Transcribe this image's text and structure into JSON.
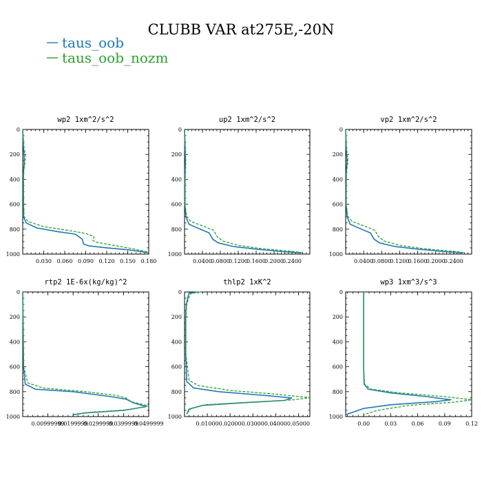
{
  "figure": {
    "title": "CLUBB VAR at275E,-20N",
    "legend": [
      {
        "name": "taus_oob",
        "color": "#1f77b4",
        "dash": "solid"
      },
      {
        "name": "taus_oob_nozm",
        "color": "#2ca02c",
        "dash": "dashed"
      }
    ]
  },
  "chart_data": [
    {
      "type": "line",
      "title": "wp2  1xm^2/s^2",
      "xlim": [
        0,
        0.18
      ],
      "ylim": [
        1000,
        0
      ],
      "xticks": [
        "0.030",
        "0.060",
        "0.090",
        "0.120",
        "0.150",
        "0.180"
      ],
      "xtick_values": [
        0.03,
        0.06,
        0.09,
        0.12,
        0.15,
        0.18
      ],
      "yticks": [
        "0",
        "200",
        "400",
        "600",
        "800",
        "1000"
      ],
      "ytick_values": [
        0,
        200,
        400,
        600,
        800,
        1000
      ],
      "series": [
        {
          "name": "taus_oob",
          "points": [
            [
              0,
              0
            ],
            [
              0.001,
              150
            ],
            [
              0.002,
              210
            ],
            [
              0.002,
              280
            ],
            [
              0.001,
              350
            ],
            [
              0.001,
              500
            ],
            [
              0.001,
              700
            ],
            [
              0.005,
              750
            ],
            [
              0.02,
              790
            ],
            [
              0.05,
              820
            ],
            [
              0.075,
              840
            ],
            [
              0.085,
              880
            ],
            [
              0.087,
              920
            ],
            [
              0.095,
              935
            ],
            [
              0.12,
              950
            ],
            [
              0.15,
              965
            ],
            [
              0.17,
              980
            ],
            [
              0.18,
              990
            ]
          ]
        },
        {
          "name": "taus_oob_nozm",
          "points": [
            [
              0,
              0
            ],
            [
              0.002,
              150
            ],
            [
              0.004,
              210
            ],
            [
              0.003,
              280
            ],
            [
              0.001,
              350
            ],
            [
              0.001,
              500
            ],
            [
              0.002,
              700
            ],
            [
              0.008,
              740
            ],
            [
              0.03,
              780
            ],
            [
              0.065,
              810
            ],
            [
              0.09,
              835
            ],
            [
              0.102,
              860
            ],
            [
              0.1,
              890
            ],
            [
              0.105,
              905
            ],
            [
              0.13,
              930
            ],
            [
              0.16,
              960
            ],
            [
              0.18,
              985
            ]
          ]
        }
      ]
    },
    {
      "type": "line",
      "title": "up2  1xm^2/s^2",
      "xlim": [
        0,
        0.28
      ],
      "ylim": [
        1000,
        0
      ],
      "xticks": [
        "0.0400",
        "0.0800",
        "0.1200",
        "0.1600",
        "0.2000",
        "0.2400"
      ],
      "xtick_values": [
        0.04,
        0.08,
        0.12,
        0.16,
        0.2,
        0.24
      ],
      "yticks": [
        "0",
        "200",
        "400",
        "600",
        "800",
        "1000"
      ],
      "ytick_values": [
        0,
        200,
        400,
        600,
        800,
        1000
      ],
      "series": [
        {
          "name": "taus_oob",
          "points": [
            [
              0,
              0
            ],
            [
              0.001,
              150
            ],
            [
              0.002,
              250
            ],
            [
              0.001,
              350
            ],
            [
              0.001,
              600
            ],
            [
              0.003,
              700
            ],
            [
              0.01,
              760
            ],
            [
              0.035,
              800
            ],
            [
              0.055,
              830
            ],
            [
              0.063,
              880
            ],
            [
              0.075,
              910
            ],
            [
              0.11,
              940
            ],
            [
              0.16,
              960
            ],
            [
              0.22,
              980
            ],
            [
              0.26,
              990
            ]
          ]
        },
        {
          "name": "taus_oob_nozm",
          "points": [
            [
              0,
              0
            ],
            [
              0.002,
              150
            ],
            [
              0.003,
              250
            ],
            [
              0.002,
              350
            ],
            [
              0.001,
              600
            ],
            [
              0.005,
              700
            ],
            [
              0.015,
              740
            ],
            [
              0.045,
              780
            ],
            [
              0.065,
              810
            ],
            [
              0.073,
              860
            ],
            [
              0.085,
              895
            ],
            [
              0.12,
              930
            ],
            [
              0.17,
              955
            ],
            [
              0.23,
              975
            ],
            [
              0.265,
              988
            ]
          ]
        }
      ]
    },
    {
      "type": "line",
      "title": "vp2  1xm^2/s^2",
      "xlim": [
        0,
        0.28
      ],
      "ylim": [
        1000,
        0
      ],
      "xticks": [
        "0.0400",
        "0.0800",
        "0.1200",
        "0.1600",
        "0.2000",
        "0.2400"
      ],
      "xtick_values": [
        0.04,
        0.08,
        0.12,
        0.16,
        0.2,
        0.24
      ],
      "yticks": [
        "0",
        "200",
        "400",
        "600",
        "800",
        "1000"
      ],
      "ytick_values": [
        0,
        200,
        400,
        600,
        800,
        1000
      ],
      "series": [
        {
          "name": "taus_oob",
          "points": [
            [
              0,
              0
            ],
            [
              0.001,
              150
            ],
            [
              0.003,
              250
            ],
            [
              0.001,
              350
            ],
            [
              0.001,
              600
            ],
            [
              0.003,
              700
            ],
            [
              0.01,
              760
            ],
            [
              0.035,
              800
            ],
            [
              0.055,
              830
            ],
            [
              0.063,
              880
            ],
            [
              0.075,
              910
            ],
            [
              0.11,
              940
            ],
            [
              0.16,
              960
            ],
            [
              0.22,
              980
            ],
            [
              0.26,
              990
            ]
          ]
        },
        {
          "name": "taus_oob_nozm",
          "points": [
            [
              0,
              0
            ],
            [
              0.002,
              150
            ],
            [
              0.005,
              250
            ],
            [
              0.002,
              350
            ],
            [
              0.001,
              600
            ],
            [
              0.005,
              700
            ],
            [
              0.015,
              740
            ],
            [
              0.045,
              780
            ],
            [
              0.065,
              810
            ],
            [
              0.073,
              860
            ],
            [
              0.085,
              895
            ],
            [
              0.12,
              930
            ],
            [
              0.17,
              955
            ],
            [
              0.23,
              975
            ],
            [
              0.265,
              988
            ]
          ]
        }
      ]
    },
    {
      "type": "line",
      "title": "rtp2  1E-6x(kg/kg)^2",
      "xlim": [
        0,
        0.05
      ],
      "ylim": [
        1000,
        0
      ],
      "xticks": [
        "0.00999999",
        "0.0199999",
        "0.0299999",
        "0.0399999",
        "0.0499999"
      ],
      "xtick_values": [
        0.01,
        0.02,
        0.03,
        0.04,
        0.05
      ],
      "yticks": [
        "0",
        "200",
        "400",
        "600",
        "800",
        "1000"
      ],
      "ytick_values": [
        0,
        200,
        400,
        600,
        800,
        1000
      ],
      "series": [
        {
          "name": "taus_oob",
          "points": [
            [
              0,
              0
            ],
            [
              0.0002,
              300
            ],
            [
              0.0003,
              600
            ],
            [
              0.001,
              740
            ],
            [
              0.005,
              780
            ],
            [
              0.02,
              800
            ],
            [
              0.035,
              840
            ],
            [
              0.041,
              860
            ],
            [
              0.044,
              890
            ],
            [
              0.049,
              920
            ],
            [
              0.04,
              950
            ],
            [
              0.025,
              970
            ],
            [
              0.02,
              985
            ]
          ]
        },
        {
          "name": "taus_oob_nozm",
          "points": [
            [
              0,
              0
            ],
            [
              0.0002,
              300
            ],
            [
              0.0004,
              600
            ],
            [
              0.002,
              730
            ],
            [
              0.008,
              770
            ],
            [
              0.025,
              800
            ],
            [
              0.037,
              830
            ],
            [
              0.041,
              850
            ],
            [
              0.043,
              880
            ],
            [
              0.05,
              915
            ],
            [
              0.042,
              945
            ],
            [
              0.027,
              965
            ],
            [
              0.021,
              980
            ]
          ]
        }
      ]
    },
    {
      "type": "line",
      "title": "thlp2  1xK^2",
      "xlim": [
        0,
        0.055
      ],
      "ylim": [
        1000,
        0
      ],
      "xticks": [
        "0.01000",
        "0.02000",
        "0.03000",
        "0.04000",
        "0.05000"
      ],
      "xtick_values": [
        0.01,
        0.02,
        0.03,
        0.04,
        0.05
      ],
      "yticks": [
        "0",
        "200",
        "400",
        "600",
        "800",
        "1000"
      ],
      "ytick_values": [
        0,
        200,
        400,
        600,
        800,
        1000
      ],
      "series": [
        {
          "name": "taus_oob",
          "points": [
            [
              0.006,
              0
            ],
            [
              0.002,
              10
            ],
            [
              0.0015,
              40
            ],
            [
              0.0008,
              100
            ],
            [
              0.0005,
              200
            ],
            [
              0.0005,
              500
            ],
            [
              0.001,
              720
            ],
            [
              0.004,
              770
            ],
            [
              0.015,
              800
            ],
            [
              0.035,
              830
            ],
            [
              0.047,
              850
            ],
            [
              0.044,
              870
            ],
            [
              0.025,
              890
            ],
            [
              0.008,
              910
            ],
            [
              0.002,
              940
            ],
            [
              0.001,
              980
            ]
          ]
        },
        {
          "name": "taus_oob_nozm",
          "points": [
            [
              0.007,
              0
            ],
            [
              0.003,
              10
            ],
            [
              0.002,
              40
            ],
            [
              0.001,
              100
            ],
            [
              0.0006,
              200
            ],
            [
              0.0006,
              500
            ],
            [
              0.002,
              710
            ],
            [
              0.006,
              750
            ],
            [
              0.02,
              790
            ],
            [
              0.04,
              820
            ],
            [
              0.055,
              848
            ],
            [
              0.048,
              865
            ],
            [
              0.028,
              885
            ],
            [
              0.009,
              905
            ],
            [
              0.003,
              935
            ],
            [
              0.001,
              975
            ]
          ]
        }
      ]
    },
    {
      "type": "line",
      "title": "wp3  1xm^3/s^3",
      "xlim": [
        -0.02,
        0.12
      ],
      "ylim": [
        1000,
        0
      ],
      "xticks": [
        "0.00",
        "0.03",
        "0.06",
        "0.09",
        "0.12"
      ],
      "xtick_values": [
        0,
        0.03,
        0.06,
        0.09,
        0.12
      ],
      "yticks": [
        "0",
        "200",
        "400",
        "600",
        "800",
        "1000"
      ],
      "ytick_values": [
        0,
        200,
        400,
        600,
        800,
        1000
      ],
      "series": [
        {
          "name": "taus_oob",
          "points": [
            [
              0,
              0
            ],
            [
              0,
              300
            ],
            [
              0,
              600
            ],
            [
              0.0005,
              740
            ],
            [
              0.005,
              780
            ],
            [
              0.03,
              810
            ],
            [
              0.07,
              840
            ],
            [
              0.097,
              865
            ],
            [
              0.08,
              880
            ],
            [
              0.03,
              905
            ],
            [
              0,
              935
            ],
            [
              -0.01,
              960
            ],
            [
              -0.02,
              985
            ]
          ]
        },
        {
          "name": "taus_oob_nozm",
          "points": [
            [
              0,
              0
            ],
            [
              0,
              300
            ],
            [
              0,
              600
            ],
            [
              0.001,
              740
            ],
            [
              0.008,
              780
            ],
            [
              0.04,
              810
            ],
            [
              0.09,
              840
            ],
            [
              0.12,
              865
            ],
            [
              0.1,
              885
            ],
            [
              0.05,
              910
            ],
            [
              0.015,
              950
            ],
            [
              0,
              985
            ]
          ]
        }
      ]
    }
  ]
}
